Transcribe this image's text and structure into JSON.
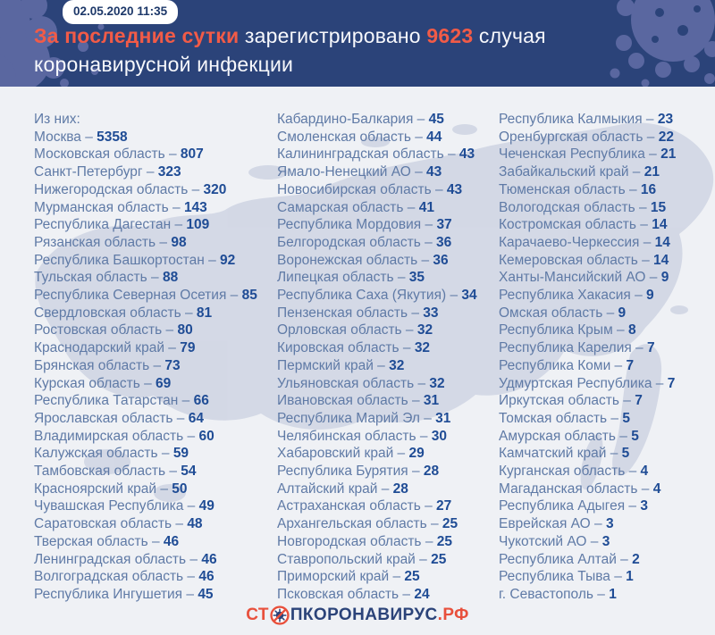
{
  "header": {
    "timestamp": "02.05.2020 11:35",
    "headline": {
      "accent1": "За последние сутки",
      "text1": " зарегистрировано ",
      "count": "9623",
      "text2": " случая",
      "line2": "коронавирусной инфекции"
    }
  },
  "stats": {
    "intro": "Из них:",
    "columns": [
      [
        {
          "name": "Москва",
          "value": "5358"
        },
        {
          "name": "Московская область",
          "value": "807"
        },
        {
          "name": "Санкт-Петербург",
          "value": "323"
        },
        {
          "name": "Нижегородская область",
          "value": "320"
        },
        {
          "name": "Мурманская область",
          "value": "143"
        },
        {
          "name": "Республика Дагестан",
          "value": "109"
        },
        {
          "name": "Рязанская область",
          "value": "98"
        },
        {
          "name": "Республика Башкортостан",
          "value": "92"
        },
        {
          "name": "Тульская область",
          "value": "88"
        },
        {
          "name": "Республика Северная Осетия",
          "value": "85"
        },
        {
          "name": "Свердловская область",
          "value": "81"
        },
        {
          "name": "Ростовская область",
          "value": "80"
        },
        {
          "name": "Краснодарский край",
          "value": "79"
        },
        {
          "name": "Брянская область",
          "value": "73"
        },
        {
          "name": "Курская область",
          "value": "69"
        },
        {
          "name": "Республика Татарстан",
          "value": "66"
        },
        {
          "name": "Ярославская область",
          "value": "64"
        },
        {
          "name": "Владимирская область",
          "value": "60"
        },
        {
          "name": "Калужская область",
          "value": "59"
        },
        {
          "name": "Тамбовская область",
          "value": "54"
        },
        {
          "name": "Красноярский край",
          "value": "50"
        },
        {
          "name": "Чувашская Республика",
          "value": "49"
        },
        {
          "name": "Саратовская область",
          "value": "48"
        },
        {
          "name": "Тверская область",
          "value": "46"
        },
        {
          "name": "Ленинградская область",
          "value": "46"
        },
        {
          "name": "Волгоградская область",
          "value": "46"
        },
        {
          "name": "Республика Ингушетия",
          "value": "45"
        }
      ],
      [
        {
          "name": "Кабардино-Балкария",
          "value": "45"
        },
        {
          "name": "Смоленская область",
          "value": "44"
        },
        {
          "name": "Калининградская область",
          "value": "43"
        },
        {
          "name": "Ямало-Ненецкий АО",
          "value": "43"
        },
        {
          "name": "Новосибирская область",
          "value": "43"
        },
        {
          "name": "Самарская область",
          "value": "41"
        },
        {
          "name": "Республика Мордовия",
          "value": "37"
        },
        {
          "name": "Белгородская область",
          "value": "36"
        },
        {
          "name": "Воронежская область",
          "value": "36"
        },
        {
          "name": "Липецкая область",
          "value": "35"
        },
        {
          "name": "Республика Саха (Якутия)",
          "value": "34"
        },
        {
          "name": "Пензенская область",
          "value": "33"
        },
        {
          "name": "Орловская область",
          "value": "32"
        },
        {
          "name": "Кировская область",
          "value": "32"
        },
        {
          "name": "Пермский край",
          "value": "32"
        },
        {
          "name": "Ульяновская область",
          "value": "32"
        },
        {
          "name": "Ивановская область",
          "value": "31"
        },
        {
          "name": "Республика Марий Эл",
          "value": "31"
        },
        {
          "name": "Челябинская область",
          "value": "30"
        },
        {
          "name": "Хабаровский край",
          "value": "29"
        },
        {
          "name": "Республика Бурятия",
          "value": "28"
        },
        {
          "name": "Алтайский край",
          "value": "28"
        },
        {
          "name": "Астраханская область",
          "value": "27"
        },
        {
          "name": "Архангельская область",
          "value": "25"
        },
        {
          "name": "Новгородская область",
          "value": "25"
        },
        {
          "name": "Ставропольский край",
          "value": "25"
        },
        {
          "name": "Приморский край",
          "value": "25"
        },
        {
          "name": "Псковская область",
          "value": "24"
        }
      ],
      [
        {
          "name": "Республика Калмыкия",
          "value": "23"
        },
        {
          "name": "Оренбургская область",
          "value": "22"
        },
        {
          "name": "Чеченская Республика",
          "value": "21"
        },
        {
          "name": "Забайкальский край",
          "value": "21"
        },
        {
          "name": "Тюменская область",
          "value": "16"
        },
        {
          "name": "Вологодская область",
          "value": "15"
        },
        {
          "name": "Костромская область",
          "value": "14"
        },
        {
          "name": "Карачаево-Черкессия",
          "value": "14"
        },
        {
          "name": "Кемеровская область",
          "value": "14"
        },
        {
          "name": "Ханты-Мансийский АО",
          "value": "9"
        },
        {
          "name": "Республика Хакасия",
          "value": "9"
        },
        {
          "name": "Омская область",
          "value": "9"
        },
        {
          "name": "Республика Крым",
          "value": "8"
        },
        {
          "name": "Республика Карелия",
          "value": "7"
        },
        {
          "name": "Республика Коми",
          "value": "7"
        },
        {
          "name": "Удмуртская Республика",
          "value": "7"
        },
        {
          "name": "Иркутская область",
          "value": "7"
        },
        {
          "name": "Томская область",
          "value": "5"
        },
        {
          "name": "Амурская область",
          "value": "5"
        },
        {
          "name": "Камчатский край",
          "value": "5"
        },
        {
          "name": "Курганская область",
          "value": "4"
        },
        {
          "name": "Магаданская область",
          "value": "4"
        },
        {
          "name": "Республика Адыгея",
          "value": "3"
        },
        {
          "name": "Еврейская АО",
          "value": "3"
        },
        {
          "name": "Чукотский АО",
          "value": "3"
        },
        {
          "name": "Республика Алтай",
          "value": "2"
        },
        {
          "name": "Республика Тыва",
          "value": "1"
        },
        {
          "name": "г. Севастополь",
          "value": "1"
        }
      ]
    ]
  },
  "footer": {
    "logo_part1": "СТ",
    "logo_part2": "ПКОРОНАВИРУС",
    "logo_part3": ".РФ"
  },
  "colors": {
    "header_navy": "#2b4379",
    "accent_orange": "#f25b47",
    "logo_red": "#e8503c",
    "region_name": "#5f7aa6",
    "region_value": "#1f4c95",
    "background": "#eff1f5",
    "map_watermark": "#cdd3e2"
  }
}
